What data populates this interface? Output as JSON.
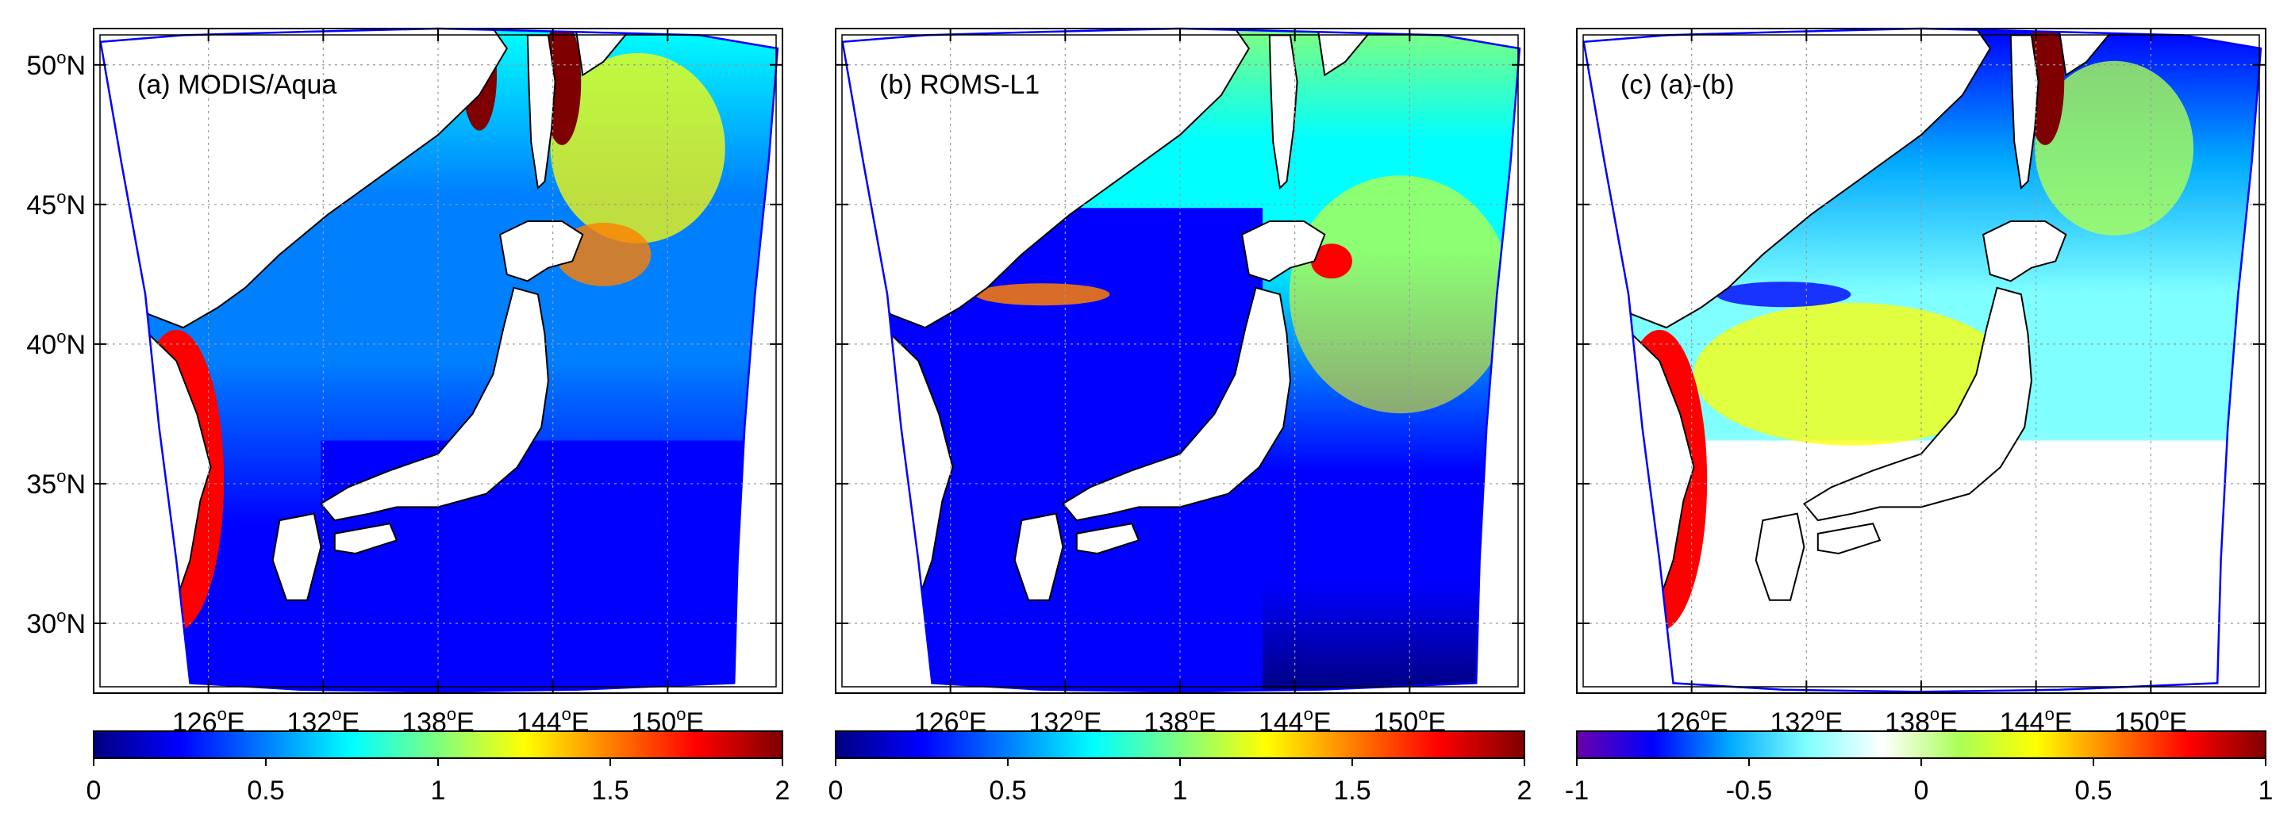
{
  "panels": [
    {
      "id": "a",
      "title": "(a) MODIS/Aqua",
      "colorbar": {
        "ticks": [
          "0",
          "0.5",
          "1",
          "1.5",
          "2"
        ],
        "min": 0,
        "max": 2,
        "colormap": "jet"
      }
    },
    {
      "id": "b",
      "title": "(b) ROMS-L1",
      "colorbar": {
        "ticks": [
          "0",
          "0.5",
          "1",
          "1.5",
          "2"
        ],
        "min": 0,
        "max": 2,
        "colormap": "jet"
      }
    },
    {
      "id": "c",
      "title": "(c) (a)-(b)",
      "colorbar": {
        "ticks": [
          "-1",
          "-0.5",
          "0",
          "0.5",
          "1"
        ],
        "min": -1,
        "max": 1,
        "colormap": "diverging"
      }
    }
  ],
  "lat_labels": [
    {
      "value": 50,
      "deg": "50",
      "hem": "N"
    },
    {
      "value": 45,
      "deg": "45",
      "hem": "N"
    },
    {
      "value": 40,
      "deg": "40",
      "hem": "N"
    },
    {
      "value": 35,
      "deg": "35",
      "hem": "N"
    },
    {
      "value": 30,
      "deg": "30",
      "hem": "N"
    }
  ],
  "lon_labels": [
    {
      "value": 126,
      "deg": "126",
      "hem": "E"
    },
    {
      "value": 132,
      "deg": "132",
      "hem": "E"
    },
    {
      "value": 138,
      "deg": "138",
      "hem": "E"
    },
    {
      "value": 144,
      "deg": "144",
      "hem": "E"
    },
    {
      "value": 150,
      "deg": "150",
      "hem": "E"
    }
  ],
  "degree_symbol": "o",
  "map_extent": {
    "lon": [
      120,
      156
    ],
    "lat": [
      27.5,
      51.3
    ]
  },
  "colors": {
    "jet": [
      "#00007f",
      "#0000ff",
      "#007fff",
      "#00ffff",
      "#7fff7f",
      "#ffff00",
      "#ff7f00",
      "#ff0000",
      "#7f0000"
    ],
    "diverging": [
      "#6a00a8",
      "#0000ff",
      "#00aaff",
      "#7fffff",
      "#ffffff",
      "#aaff55",
      "#ffff00",
      "#ff7f00",
      "#ff0000",
      "#7f0000"
    ],
    "domain_outline": "#0000ff",
    "land": "#ffffff",
    "coast": "#000000"
  }
}
